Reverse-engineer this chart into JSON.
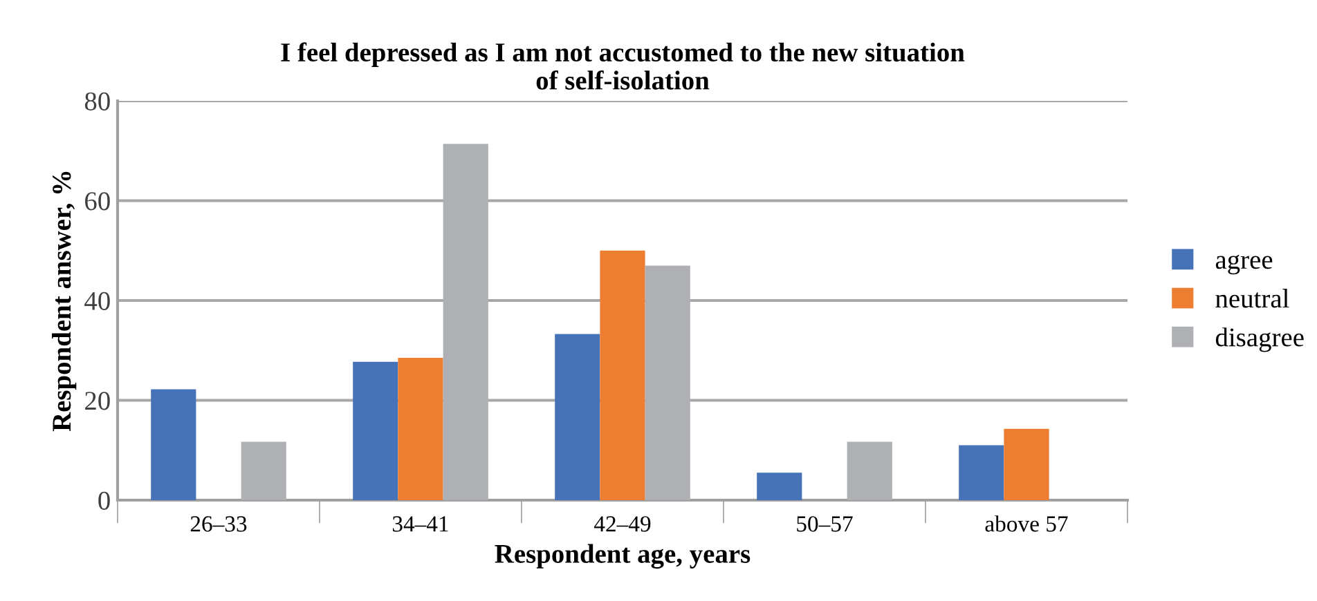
{
  "chart_data": {
    "type": "bar",
    "title": "I feel depressed as I am not accustomed to the new situation\nof self-isolation",
    "xlabel": "Respondent age, years",
    "ylabel": "Respondent answer, %",
    "categories": [
      "26–33",
      "34–41",
      "42–49",
      "50–57",
      "above 57"
    ],
    "series": [
      {
        "name": "agree",
        "color": "#4672b8",
        "values": [
          22.2,
          27.7,
          33.3,
          5.5,
          11.0
        ]
      },
      {
        "name": "neutral",
        "color": "#ed7d31",
        "values": [
          0,
          28.5,
          50.0,
          0,
          14.3
        ]
      },
      {
        "name": "disagree",
        "color": "#afb0b3",
        "values": [
          11.7,
          71.4,
          47.0,
          11.7,
          0
        ]
      }
    ],
    "ylim": [
      0,
      80
    ],
    "yticks": [
      0,
      20,
      40,
      60,
      80
    ],
    "grid": "y",
    "legend": "right"
  }
}
